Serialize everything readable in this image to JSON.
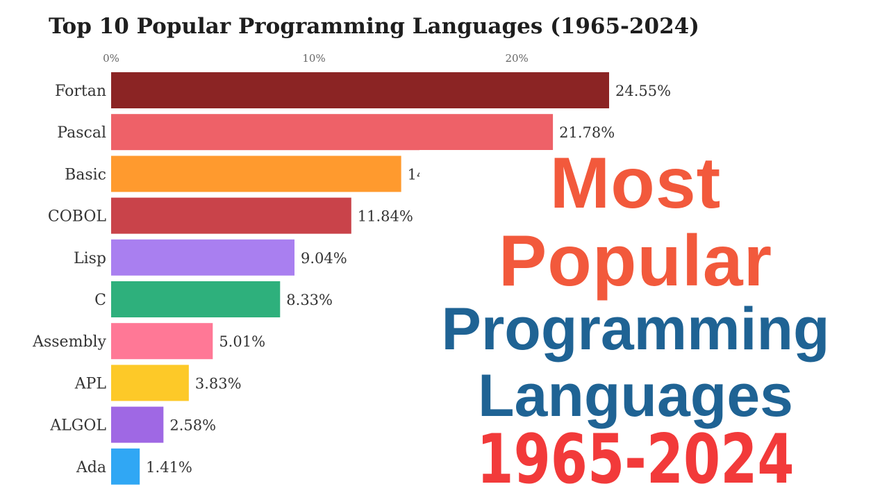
{
  "chart_data": {
    "type": "bar",
    "orientation": "horizontal",
    "title": "Top 10 Popular Programming Languages (1965-2024)",
    "categories": [
      "Fortan",
      "Pascal",
      "Basic",
      "COBOL",
      "Lisp",
      "C",
      "Assembly",
      "APL",
      "ALGOL",
      "Ada"
    ],
    "values": [
      24.55,
      21.78,
      14.3,
      11.84,
      9.04,
      8.33,
      5.01,
      3.83,
      2.58,
      1.41
    ],
    "value_labels": [
      "24.55%",
      "21.78%",
      "14",
      "11.84%",
      "9.04%",
      "8.33%",
      "5.01%",
      "3.83%",
      "2.58%",
      "1.41%"
    ],
    "colors": [
      "#8b2424",
      "#ee6168",
      "#ff9a2e",
      "#c9434a",
      "#a97ff0",
      "#2eb07c",
      "#ff7896",
      "#fdc928",
      "#9f68e4",
      "#30a7f4"
    ],
    "x_ticks": [
      "0%",
      "10%",
      "20%"
    ],
    "x_tick_values": [
      0,
      10,
      20
    ],
    "xlim": [
      0,
      25.7
    ],
    "grid": false,
    "legend": "none"
  },
  "promo": {
    "line1": "Most",
    "line2": "Popular",
    "line3": "Programming",
    "line4": "Languages",
    "line5": "1965-2024",
    "accent_color": "#f2593c",
    "heading_color": "#1f6394",
    "year_color": "#f23a3a"
  }
}
